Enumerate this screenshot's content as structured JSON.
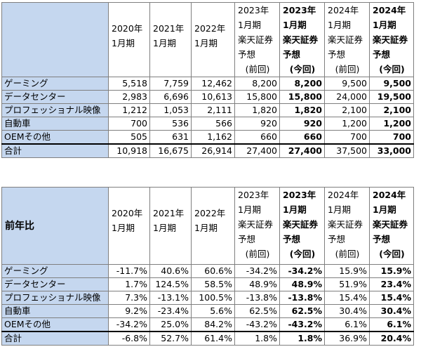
{
  "tables": [
    {
      "title": "",
      "columns": [
        [
          "2020年",
          "1月期"
        ],
        [
          "2021年",
          "1月期"
        ],
        [
          "2022年",
          "1月期"
        ],
        [
          "2023年",
          "1月期",
          "楽天証券",
          "予想",
          "(前回)"
        ],
        [
          "2023年",
          "1月期",
          "楽天証券",
          "予想",
          "(今回)"
        ],
        [
          "2024年",
          "1月期",
          "楽天証券",
          "予想",
          "(前回)"
        ],
        [
          "2024年",
          "1月期",
          "楽天証券",
          "予想",
          "(今回)"
        ]
      ],
      "rows": [
        {
          "label": "ゲーミング",
          "values": [
            "5,518",
            "7,759",
            "12,462",
            "8,200",
            "8,200",
            "9,500",
            "9,500"
          ]
        },
        {
          "label": "データセンター",
          "values": [
            "2,983",
            "6,696",
            "10,613",
            "15,800",
            "15,800",
            "24,000",
            "19,500"
          ]
        },
        {
          "label": "プロフェッショナル映像",
          "values": [
            "1,212",
            "1,053",
            "2,111",
            "1,820",
            "1,820",
            "2,100",
            "2,100"
          ]
        },
        {
          "label": "自動車",
          "values": [
            "700",
            "536",
            "566",
            "920",
            "920",
            "1,200",
            "1,200"
          ]
        },
        {
          "label": "OEMその他",
          "values": [
            "505",
            "631",
            "1,162",
            "660",
            "660",
            "700",
            "700"
          ]
        }
      ],
      "total": {
        "label": "合計",
        "values": [
          "10,918",
          "16,675",
          "26,914",
          "27,400",
          "27,400",
          "37,500",
          "33,000"
        ]
      }
    },
    {
      "title": "前年比",
      "columns": [
        [
          "2020年",
          "1月期"
        ],
        [
          "2021年",
          "1月期"
        ],
        [
          "2022年",
          "1月期"
        ],
        [
          "2023年",
          "1月期",
          "楽天証券",
          "予想",
          "(前回)"
        ],
        [
          "2023年",
          "1月期",
          "楽天証券",
          "予想",
          "(今回)"
        ],
        [
          "2024年",
          "1月期",
          "楽天証券",
          "予想",
          "(前回)"
        ],
        [
          "2024年",
          "1月期",
          "楽天証券",
          "予想",
          "(今回)"
        ]
      ],
      "rows": [
        {
          "label": "ゲーミング",
          "values": [
            "-11.7%",
            "40.6%",
            "60.6%",
            "-34.2%",
            "-34.2%",
            "15.9%",
            "15.9%"
          ]
        },
        {
          "label": "データセンター",
          "values": [
            "1.7%",
            "124.5%",
            "58.5%",
            "48.9%",
            "48.9%",
            "51.9%",
            "23.4%"
          ]
        },
        {
          "label": "プロフェッショナル映像",
          "values": [
            "7.3%",
            "-13.1%",
            "100.5%",
            "-13.8%",
            "-13.8%",
            "15.4%",
            "15.4%"
          ]
        },
        {
          "label": "自動車",
          "values": [
            "9.2%",
            "-23.4%",
            "5.6%",
            "62.5%",
            "62.5%",
            "30.4%",
            "30.4%"
          ]
        },
        {
          "label": "OEMその他",
          "values": [
            "-34.2%",
            "25.0%",
            "84.2%",
            "-43.2%",
            "-43.2%",
            "6.1%",
            "6.1%"
          ]
        }
      ],
      "total": {
        "label": "合計",
        "values": [
          "-6.8%",
          "52.7%",
          "61.4%",
          "1.8%",
          "1.8%",
          "36.9%",
          "20.4%"
        ]
      }
    }
  ]
}
